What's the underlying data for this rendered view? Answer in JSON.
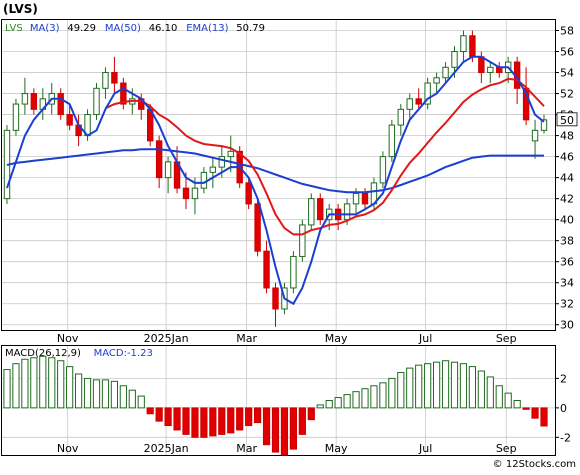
{
  "title": "(LVS)",
  "watermark": "© 12Stocks.com",
  "price_panel": {
    "legend": [
      {
        "label": "LVS",
        "color": "#2e8b2e"
      },
      {
        "label": "MA(3)",
        "color": "#1a3fd1"
      },
      {
        "label": "49.29",
        "color": "#000000"
      },
      {
        "label": "MA(50)",
        "color": "#1a3fd1"
      },
      {
        "label": "46.10",
        "color": "#000000"
      },
      {
        "label": "EMA(13)",
        "color": "#1a3fd1"
      },
      {
        "label": "50.79",
        "color": "#000000"
      }
    ],
    "y_ticks": [
      30,
      32,
      34,
      36,
      38,
      40,
      42,
      44,
      46,
      48,
      50,
      52,
      54,
      56,
      58
    ],
    "last_price_label": "50",
    "x_labels": [
      {
        "label": "Nov",
        "i": 7
      },
      {
        "label": "2025Jan",
        "i": 18
      },
      {
        "label": "Mar",
        "i": 27
      },
      {
        "label": "May",
        "i": 37
      },
      {
        "label": "Jul",
        "i": 47
      },
      {
        "label": "Sep",
        "i": 56
      }
    ]
  },
  "macd_panel": {
    "legend": [
      {
        "label": "MACD(26,12,9)",
        "color": "#000000"
      },
      {
        "label": "MACD:-1.23",
        "color": "#1a3fd1"
      }
    ],
    "y_ticks": [
      -2,
      0,
      2
    ]
  },
  "chart_data": {
    "type": "candlestick",
    "ylim": [
      29.5,
      59
    ],
    "macd_ylim": [
      -3.2,
      4.2
    ],
    "ohlc": [
      [
        42,
        49,
        41.5,
        48.5
      ],
      [
        48.5,
        51.5,
        48,
        51
      ],
      [
        51,
        53.5,
        50,
        52
      ],
      [
        52,
        52.5,
        50,
        50.5
      ],
      [
        50.5,
        52.5,
        49.5,
        51.5
      ],
      [
        51,
        53,
        50,
        52
      ],
      [
        52,
        52.5,
        49.5,
        50
      ],
      [
        50,
        51,
        48.5,
        49
      ],
      [
        49,
        50,
        47,
        48
      ],
      [
        48,
        50.5,
        47.5,
        50
      ],
      [
        50,
        53,
        49.5,
        52.5
      ],
      [
        52.5,
        54.5,
        51.5,
        54
      ],
      [
        54,
        55.5,
        52,
        53
      ],
      [
        53,
        53.5,
        50.5,
        51
      ],
      [
        51,
        52.5,
        50,
        51.5
      ],
      [
        51.5,
        52,
        49.5,
        50.5
      ],
      [
        50.5,
        51,
        47,
        47.5
      ],
      [
        47.5,
        48,
        43,
        44
      ],
      [
        44,
        46,
        42.5,
        45.5
      ],
      [
        45.5,
        47,
        42.5,
        43
      ],
      [
        43,
        44.5,
        41,
        42
      ],
      [
        42,
        44,
        40.5,
        43
      ],
      [
        43,
        45,
        42.5,
        44.5
      ],
      [
        44.5,
        46,
        43,
        45
      ],
      [
        45,
        47,
        44,
        46
      ],
      [
        46,
        48,
        44.5,
        46.5
      ],
      [
        46.5,
        47,
        43,
        43.5
      ],
      [
        43.5,
        44,
        41,
        41.5
      ],
      [
        41.5,
        42,
        36.5,
        37
      ],
      [
        37,
        38,
        33,
        33.5
      ],
      [
        33.5,
        34,
        29.8,
        31.5
      ],
      [
        31.5,
        34,
        31,
        33.5
      ],
      [
        33.5,
        37,
        33,
        36.5
      ],
      [
        36.5,
        40,
        36,
        39.5
      ],
      [
        39.5,
        42.5,
        39,
        42
      ],
      [
        42,
        42.5,
        39.5,
        40
      ],
      [
        40,
        41.5,
        39,
        41
      ],
      [
        41,
        41.5,
        39,
        40
      ],
      [
        40,
        42,
        39.5,
        41.5
      ],
      [
        41.5,
        43,
        40.5,
        42.5
      ],
      [
        42.5,
        43,
        41,
        41.5
      ],
      [
        41.5,
        44,
        41,
        43.5
      ],
      [
        43.5,
        46.5,
        43,
        46
      ],
      [
        46,
        49.5,
        45.5,
        49
      ],
      [
        49,
        51,
        48,
        50.5
      ],
      [
        50.5,
        52,
        49.5,
        51.5
      ],
      [
        51.5,
        52.5,
        50.5,
        51
      ],
      [
        51,
        53.5,
        50.5,
        53
      ],
      [
        53,
        54,
        52,
        53.5
      ],
      [
        53.5,
        55,
        53,
        54.5
      ],
      [
        54.5,
        56.5,
        53.5,
        56
      ],
      [
        56,
        58,
        55,
        57.5
      ],
      [
        57.5,
        58,
        55,
        55.5
      ],
      [
        55.5,
        56,
        53,
        54
      ],
      [
        54,
        55,
        53,
        54.5
      ],
      [
        54.5,
        55,
        53.5,
        54
      ],
      [
        54,
        55.5,
        53,
        55
      ],
      [
        55,
        55.5,
        51,
        52.5
      ],
      [
        52.5,
        54.5,
        49,
        49.5
      ],
      [
        47.5,
        49.5,
        45.8,
        48.5
      ],
      [
        48.5,
        50,
        48.2,
        49.5
      ]
    ],
    "ma3": [
      43,
      45.5,
      48,
      49.5,
      50.5,
      51.5,
      51.5,
      51,
      49,
      48,
      48.5,
      50.5,
      52,
      52.5,
      52,
      51.5,
      50.5,
      49,
      47,
      45.5,
      44,
      43.5,
      43.5,
      44,
      44.5,
      45,
      45,
      44,
      42,
      39,
      35.5,
      32.5,
      32,
      33.5,
      36,
      39,
      40.5,
      40.5,
      40.5,
      40.5,
      41,
      41.5,
      42.5,
      45,
      47.5,
      49.5,
      50.5,
      51.5,
      52,
      53,
      54,
      55,
      55.5,
      55.5,
      55,
      54.5,
      54.5,
      53.5,
      52,
      50,
      49.3
    ],
    "ma50": [
      45.2,
      45.4,
      45.5,
      45.6,
      45.7,
      45.8,
      45.9,
      46.0,
      46.1,
      46.2,
      46.3,
      46.4,
      46.5,
      46.6,
      46.6,
      46.7,
      46.7,
      46.7,
      46.6,
      46.5,
      46.4,
      46.3,
      46.1,
      45.9,
      45.7,
      45.5,
      45.3,
      45.1,
      44.9,
      44.6,
      44.3,
      44.0,
      43.7,
      43.4,
      43.2,
      43.0,
      42.8,
      42.7,
      42.6,
      42.6,
      42.6,
      42.7,
      42.8,
      43.0,
      43.3,
      43.6,
      43.9,
      44.2,
      44.6,
      45.0,
      45.3,
      45.6,
      45.9,
      46.0,
      46.1,
      46.1,
      46.1,
      46.1,
      46.1,
      46.1,
      46.1
    ],
    "ema13": [
      null,
      null,
      null,
      null,
      null,
      null,
      null,
      null,
      null,
      null,
      null,
      50.6,
      51.0,
      51.2,
      51.3,
      51.3,
      50.8,
      50.0,
      49.5,
      48.8,
      48.0,
      47.5,
      47.2,
      47.1,
      47.0,
      46.8,
      46.3,
      45.6,
      44.3,
      42.5,
      40.5,
      39.2,
      38.6,
      38.6,
      39.0,
      39.2,
      39.5,
      39.6,
      39.9,
      40.3,
      40.5,
      40.9,
      41.6,
      42.8,
      44.2,
      45.4,
      46.3,
      47.3,
      48.3,
      49.2,
      50.2,
      51.2,
      51.9,
      52.4,
      52.8,
      53.0,
      53.4,
      53.3,
      52.6,
      51.7,
      50.8
    ],
    "macd_hist": [
      2.6,
      3.0,
      3.3,
      3.4,
      3.5,
      3.4,
      3.2,
      2.8,
      2.3,
      2.0,
      1.9,
      1.9,
      1.8,
      1.5,
      1.2,
      0.8,
      -0.4,
      -0.9,
      -1.2,
      -1.5,
      -1.8,
      -2.0,
      -2.0,
      -1.9,
      -1.8,
      -1.7,
      -1.5,
      -1.2,
      -1.0,
      -2.5,
      -3.0,
      -3.2,
      -2.8,
      -1.8,
      -0.8,
      0.2,
      0.5,
      0.7,
      0.9,
      1.1,
      1.3,
      1.5,
      1.7,
      2.0,
      2.4,
      2.7,
      2.9,
      3.0,
      3.1,
      3.2,
      3.1,
      3.0,
      2.8,
      2.5,
      2.1,
      1.5,
      1.0,
      0.5,
      -0.1,
      -0.7,
      -1.23
    ]
  }
}
